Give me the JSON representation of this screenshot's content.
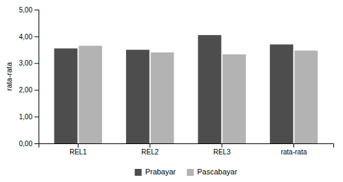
{
  "chart_data": {
    "type": "bar",
    "ylabel": "rata-rata",
    "categories": [
      "REL1",
      "REL2",
      "REL3",
      "rata-rata"
    ],
    "series": [
      {
        "name": "Prabayar",
        "color": "#4d4d4d",
        "values": [
          3.55,
          3.5,
          4.05,
          3.7
        ]
      },
      {
        "name": "Pascabayar",
        "color": "#b3b3b3",
        "values": [
          3.65,
          3.4,
          3.33,
          3.47
        ]
      }
    ],
    "ylim": [
      0,
      5.0
    ],
    "yticks": [
      {
        "value": 0.0,
        "label": "0,00"
      },
      {
        "value": 1.0,
        "label": "1,00"
      },
      {
        "value": 2.0,
        "label": "2,00"
      },
      {
        "value": 3.0,
        "label": "3,00"
      },
      {
        "value": 4.0,
        "label": "4,00"
      },
      {
        "value": 5.0,
        "label": "5,00"
      }
    ],
    "grid": false,
    "legend": "bottom"
  }
}
